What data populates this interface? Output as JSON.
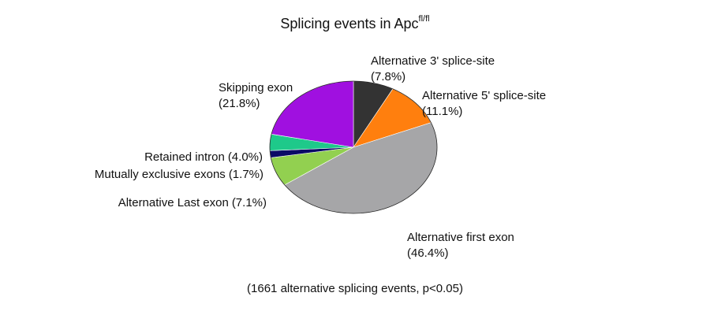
{
  "chart_data": {
    "type": "pie",
    "title": "Splicing events in Apc",
    "title_superscript": "fl/fl",
    "categories": [
      "Alternative 3' splice-site",
      "Alternative 5' splice-site",
      "Alternative first exon",
      "Alternative Last exon",
      "Mutually exclusive exons",
      "Retained intron",
      "Skipping exon"
    ],
    "values": [
      7.8,
      11.1,
      46.4,
      7.1,
      1.7,
      4.0,
      21.8
    ],
    "value_labels": [
      "(7.8%)",
      "(11.1%)",
      "(46.4%)",
      "(7.1%)",
      "(1.7%)",
      "(4.0%)",
      "(21.8%)"
    ],
    "colors": [
      "#333333",
      "#ff7f0e",
      "#a6a6a8",
      "#92d050",
      "#0a0a66",
      "#1ec98a",
      "#a010e0"
    ],
    "footnote": "(1661 alternative splicing events, p<0.05)"
  }
}
